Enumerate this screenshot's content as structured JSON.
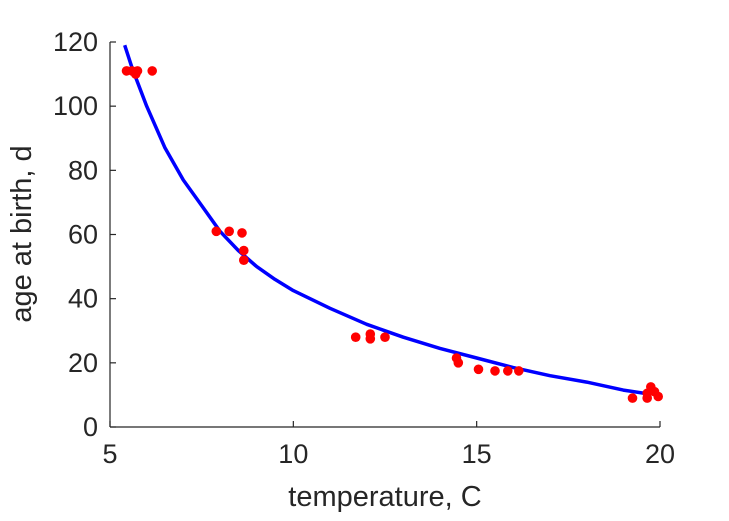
{
  "chart_data": {
    "type": "scatter",
    "title": "",
    "xlabel": "temperature, C",
    "ylabel": "age at birth, d",
    "xlim": [
      5,
      20
    ],
    "ylim": [
      0,
      120
    ],
    "xticks": [
      "5",
      "10",
      "15",
      "20"
    ],
    "yticks": [
      "0",
      "20",
      "40",
      "60",
      "80",
      "100",
      "120"
    ],
    "grid": false,
    "legend": "none",
    "series": [
      {
        "kind": "scatter",
        "color": "#ff0000",
        "points": [
          [
            5.45,
            111
          ],
          [
            5.6,
            111
          ],
          [
            5.7,
            110
          ],
          [
            5.75,
            111
          ],
          [
            6.15,
            111
          ],
          [
            7.9,
            61
          ],
          [
            8.25,
            61
          ],
          [
            8.6,
            60.5
          ],
          [
            8.65,
            55
          ],
          [
            8.65,
            52
          ],
          [
            11.7,
            28
          ],
          [
            12.1,
            29
          ],
          [
            12.1,
            27.5
          ],
          [
            12.5,
            28
          ],
          [
            14.45,
            21.5
          ],
          [
            14.5,
            20
          ],
          [
            15.05,
            18
          ],
          [
            15.5,
            17.5
          ],
          [
            15.85,
            17.5
          ],
          [
            16.15,
            17.5
          ],
          [
            19.25,
            9
          ],
          [
            19.65,
            9
          ],
          [
            19.65,
            10.5
          ],
          [
            19.75,
            12.5
          ],
          [
            19.85,
            11
          ],
          [
            19.95,
            9.5
          ]
        ]
      },
      {
        "kind": "line",
        "color": "#0000ff",
        "points": [
          [
            5.4,
            119
          ],
          [
            5.6,
            112
          ],
          [
            6,
            100
          ],
          [
            6.5,
            87
          ],
          [
            7,
            77
          ],
          [
            7.5,
            69
          ],
          [
            8,
            61
          ],
          [
            8.5,
            55
          ],
          [
            9,
            50
          ],
          [
            9.5,
            46
          ],
          [
            10,
            42.5
          ],
          [
            11,
            37
          ],
          [
            12,
            32
          ],
          [
            13,
            28
          ],
          [
            14,
            24.5
          ],
          [
            15,
            21.5
          ],
          [
            16,
            18.5
          ],
          [
            17,
            16
          ],
          [
            18,
            14
          ],
          [
            19,
            11.5
          ],
          [
            19.7,
            10.3
          ]
        ]
      }
    ]
  }
}
